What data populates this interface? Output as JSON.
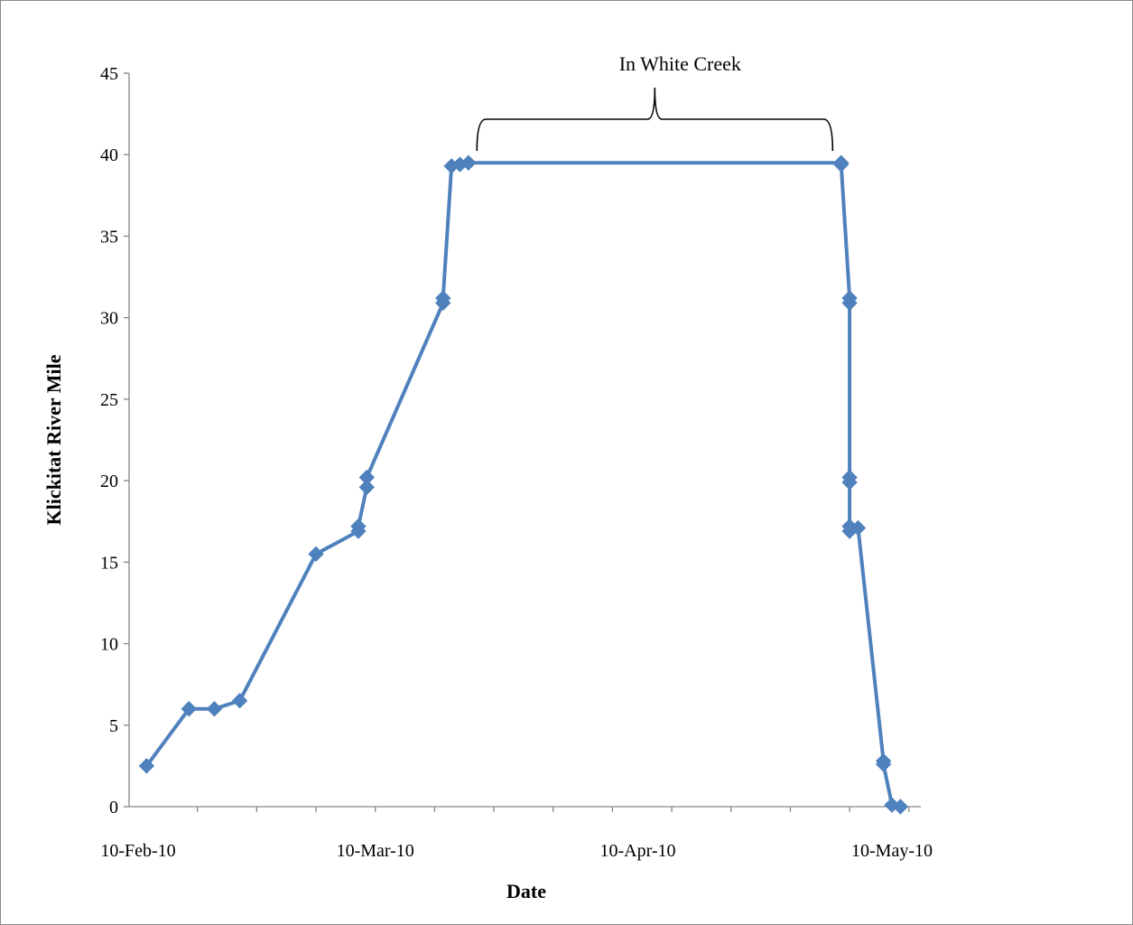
{
  "chart_data": {
    "type": "line",
    "xlabel": "Date",
    "ylabel": "Klickitat River Mile",
    "x_tick_labels": [
      "10-Feb-10",
      "10-Mar-10",
      "10-Apr-10",
      "10-May-10"
    ],
    "x_range": [
      "2010-02-10",
      "2010-05-10"
    ],
    "ylim": [
      0,
      45
    ],
    "y_ticks": [
      0,
      5,
      10,
      15,
      20,
      25,
      30,
      35,
      40,
      45
    ],
    "grid": false,
    "legend": "none",
    "color": "#4F81BD",
    "annotation": {
      "text": "In White Creek",
      "from": "2010-03-22",
      "to": "2010-05-03"
    },
    "series": [
      {
        "points": [
          {
            "x": "2010-02-11",
            "y": 2.5
          },
          {
            "x": "2010-02-16",
            "y": 6.0
          },
          {
            "x": "2010-02-19",
            "y": 6.0
          },
          {
            "x": "2010-02-22",
            "y": 6.5
          },
          {
            "x": "2010-03-03",
            "y": 15.5
          },
          {
            "x": "2010-03-08",
            "y": 16.9
          },
          {
            "x": "2010-03-08",
            "y": 17.2
          },
          {
            "x": "2010-03-09",
            "y": 19.6
          },
          {
            "x": "2010-03-09",
            "y": 20.2
          },
          {
            "x": "2010-03-18",
            "y": 30.9
          },
          {
            "x": "2010-03-18",
            "y": 31.2
          },
          {
            "x": "2010-03-19",
            "y": 39.3
          },
          {
            "x": "2010-03-20",
            "y": 39.4
          },
          {
            "x": "2010-03-21",
            "y": 39.5
          },
          {
            "x": "2010-05-04",
            "y": 39.5
          },
          {
            "x": "2010-05-04",
            "y": 39.4
          },
          {
            "x": "2010-05-05",
            "y": 31.2
          },
          {
            "x": "2010-05-05",
            "y": 30.9
          },
          {
            "x": "2010-05-05",
            "y": 20.2
          },
          {
            "x": "2010-05-05",
            "y": 19.9
          },
          {
            "x": "2010-05-05",
            "y": 17.2
          },
          {
            "x": "2010-05-05",
            "y": 16.9
          },
          {
            "x": "2010-05-06",
            "y": 17.1
          },
          {
            "x": "2010-05-09",
            "y": 2.8
          },
          {
            "x": "2010-05-09",
            "y": 2.6
          },
          {
            "x": "2010-05-10",
            "y": 0.1
          },
          {
            "x": "2010-05-11",
            "y": 0.0
          }
        ]
      }
    ]
  }
}
